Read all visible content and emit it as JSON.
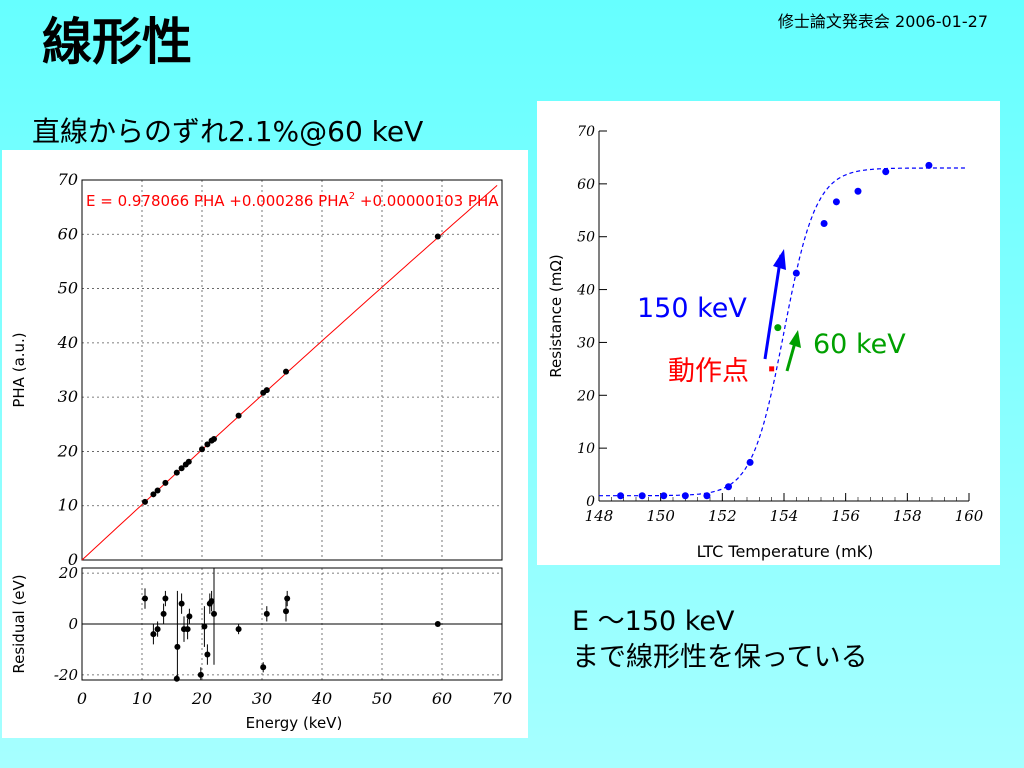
{
  "slide": {
    "title": "線形性",
    "header_note": "修士論文発表会 2006-01-27",
    "left_caption": "直線からのずれ2.1%@60 keV",
    "bottom_line1": "E ～150 keV",
    "bottom_line2": "まで線形性を保っている"
  },
  "colors": {
    "background": "#66ffff",
    "fit_line": "#ff0000",
    "fit_text": "#ff0000",
    "curve": "#0000ff",
    "points_right": "#0000ff",
    "arrow_150": "#0000ff",
    "arrow_60": "#00a000",
    "operating_point": "#ff0000"
  },
  "chart_data": [
    {
      "type": "scatter",
      "id": "pha-vs-energy",
      "xlabel": "Energy (keV)",
      "ylabel": "PHA (a.u.)",
      "xlim": [
        0,
        70
      ],
      "ylim": [
        0,
        70
      ],
      "xticks": [
        0,
        10,
        20,
        30,
        40,
        50,
        60,
        70
      ],
      "yticks": [
        0,
        10,
        20,
        30,
        40,
        50,
        60,
        70
      ],
      "grid": true,
      "fit": {
        "label_main": "E = 0.978066 PHA +0.000286 PHA",
        "label_sup": "2",
        "label_tail": " +0.00000103 PHA",
        "a": 0.978066,
        "b": 0.000286,
        "c": 1.03e-06
      },
      "points": [
        {
          "x": 10.5,
          "y": 10.7
        },
        {
          "x": 11.9,
          "y": 12.1
        },
        {
          "x": 12.6,
          "y": 12.8
        },
        {
          "x": 13.9,
          "y": 14.2
        },
        {
          "x": 15.8,
          "y": 16.1
        },
        {
          "x": 16.6,
          "y": 16.9
        },
        {
          "x": 17.3,
          "y": 17.6
        },
        {
          "x": 17.8,
          "y": 18.1
        },
        {
          "x": 20.0,
          "y": 20.4
        },
        {
          "x": 20.9,
          "y": 21.3
        },
        {
          "x": 21.6,
          "y": 22.0
        },
        {
          "x": 22.0,
          "y": 22.3
        },
        {
          "x": 26.1,
          "y": 26.6
        },
        {
          "x": 30.2,
          "y": 30.8
        },
        {
          "x": 30.8,
          "y": 31.3
        },
        {
          "x": 34.0,
          "y": 34.7
        },
        {
          "x": 59.3,
          "y": 59.6
        }
      ]
    },
    {
      "type": "scatter",
      "id": "residual",
      "xlabel": "Energy (keV)",
      "ylabel": "Residual (eV)",
      "xlim": [
        0,
        70
      ],
      "ylim": [
        -22,
        22
      ],
      "xticks": [
        0,
        10,
        20,
        30,
        40,
        50,
        60,
        70
      ],
      "yticks": [
        -20,
        0,
        20
      ],
      "grid": true,
      "points": [
        {
          "x": 10.5,
          "y": 10,
          "err": 4
        },
        {
          "x": 11.9,
          "y": -4,
          "err": 4
        },
        {
          "x": 12.6,
          "y": -2,
          "err": 3
        },
        {
          "x": 13.6,
          "y": 4,
          "err": 4
        },
        {
          "x": 13.9,
          "y": 10,
          "err": 3
        },
        {
          "x": 15.8,
          "y": -23,
          "err": 3
        },
        {
          "x": 15.9,
          "y": -9,
          "err": 22
        },
        {
          "x": 16.6,
          "y": 8,
          "err": 4
        },
        {
          "x": 17.0,
          "y": -2,
          "err": 5
        },
        {
          "x": 17.6,
          "y": -2,
          "err": 4
        },
        {
          "x": 17.9,
          "y": 3,
          "err": 3
        },
        {
          "x": 19.8,
          "y": -20,
          "err": 3
        },
        {
          "x": 20.4,
          "y": -1,
          "err": 8
        },
        {
          "x": 20.9,
          "y": -12,
          "err": 4
        },
        {
          "x": 21.3,
          "y": 8,
          "err": 4
        },
        {
          "x": 21.6,
          "y": 9,
          "err": 4
        },
        {
          "x": 22.0,
          "y": 4,
          "err": 20
        },
        {
          "x": 26.1,
          "y": -2,
          "err": 2
        },
        {
          "x": 30.2,
          "y": -17,
          "err": 2
        },
        {
          "x": 30.8,
          "y": 4,
          "err": 3
        },
        {
          "x": 34.0,
          "y": 5,
          "err": 4
        },
        {
          "x": 34.2,
          "y": 10,
          "err": 3
        },
        {
          "x": 59.3,
          "y": 0,
          "err": 1
        }
      ]
    },
    {
      "type": "scatter",
      "id": "rt-curve",
      "xlabel": "LTC Temperature (mK)",
      "ylabel": "Resistance (mΩ)",
      "xlim": [
        148,
        160
      ],
      "ylim": [
        0,
        70
      ],
      "xticks": [
        148,
        150,
        152,
        154,
        156,
        158,
        160
      ],
      "yticks": [
        0,
        10,
        20,
        30,
        40,
        50,
        60,
        70
      ],
      "grid": false,
      "curve": {
        "base": 1.0,
        "top": 63.0,
        "center": 154.0,
        "width": 0.52
      },
      "points": [
        {
          "x": 148.7,
          "y": 1.0
        },
        {
          "x": 149.4,
          "y": 1.0
        },
        {
          "x": 150.1,
          "y": 1.0
        },
        {
          "x": 150.8,
          "y": 1.0
        },
        {
          "x": 151.5,
          "y": 1.0
        },
        {
          "x": 152.2,
          "y": 2.7
        },
        {
          "x": 152.9,
          "y": 7.3
        },
        {
          "x": 154.4,
          "y": 43.1
        },
        {
          "x": 155.3,
          "y": 52.5
        },
        {
          "x": 155.7,
          "y": 56.6
        },
        {
          "x": 156.4,
          "y": 58.6
        },
        {
          "x": 157.3,
          "y": 62.3
        },
        {
          "x": 158.7,
          "y": 63.5
        }
      ],
      "operating_point": {
        "x": 153.6,
        "y": 25.0,
        "label": "動作点"
      },
      "extra_point": {
        "x": 153.8,
        "y": 32.8
      },
      "annotations": [
        {
          "label": "150 keV",
          "color": "#0000ff"
        },
        {
          "label": "60 keV",
          "color": "#00a000"
        }
      ]
    }
  ]
}
